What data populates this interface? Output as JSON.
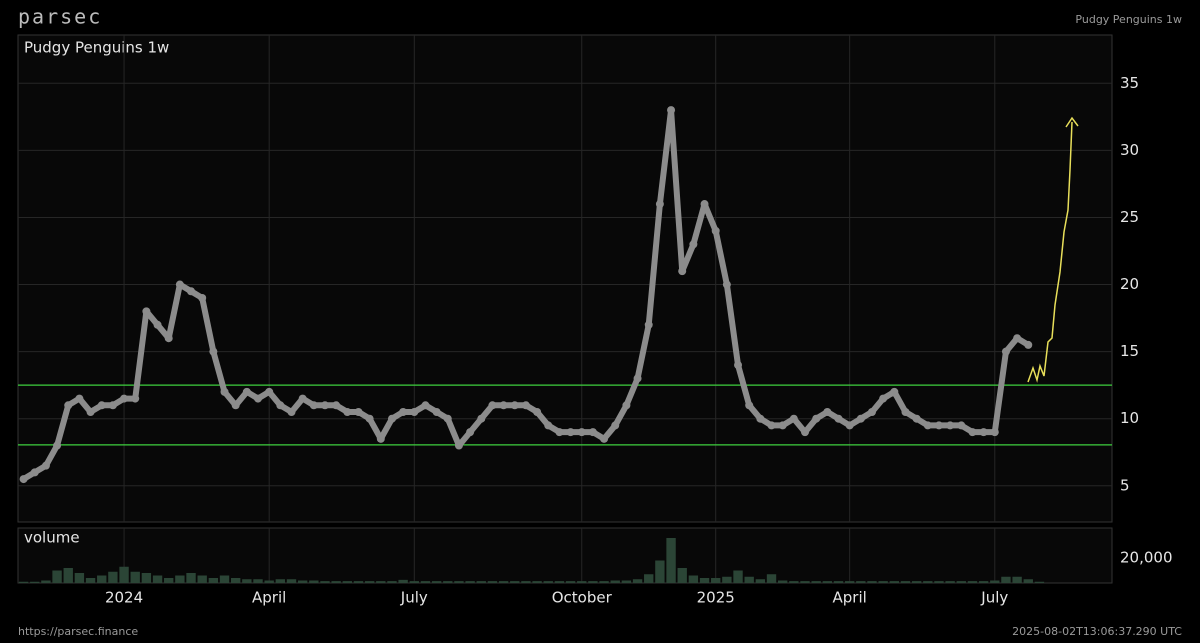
{
  "header": {
    "logo": "parsec",
    "label": "Pudgy Penguins 1w"
  },
  "footer": {
    "url": "https://parsec.finance",
    "timestamp": "2025-08-02T13:06:37.290 UTC"
  },
  "chart_data": [
    {
      "type": "scatter",
      "title": "Pudgy Penguins 1w",
      "color": "#8c8c8c",
      "grid": true,
      "categories": [
        null,
        null,
        null,
        null,
        null,
        null,
        null,
        null,
        null,
        "2024",
        null,
        null,
        null,
        null,
        null,
        null,
        null,
        null,
        null,
        null,
        null,
        null,
        "April",
        null,
        null,
        null,
        null,
        null,
        null,
        null,
        null,
        null,
        null,
        null,
        null,
        "July",
        null,
        null,
        null,
        null,
        null,
        null,
        null,
        null,
        null,
        null,
        null,
        null,
        null,
        null,
        "October",
        null,
        null,
        null,
        null,
        null,
        null,
        null,
        null,
        null,
        null,
        null,
        "2025",
        null,
        null,
        null,
        null,
        null,
        null,
        null,
        null,
        null,
        null,
        null,
        "April",
        null,
        null,
        null,
        null,
        null,
        null,
        null,
        null,
        null,
        null,
        null,
        null,
        "July",
        null,
        null,
        null,
        null,
        null,
        null,
        null,
        null,
        null,
        null
      ],
      "values": [
        5.5,
        6,
        6.5,
        8,
        11,
        11.5,
        10.5,
        11,
        11,
        11.5,
        11.5,
        18,
        17,
        16,
        20,
        19.5,
        19,
        15,
        12,
        11,
        12,
        11.5,
        12,
        11,
        10.5,
        11.5,
        11,
        11,
        11,
        10.5,
        10.5,
        10,
        8.5,
        10,
        10.5,
        10.5,
        11,
        10.5,
        10,
        8,
        9,
        10,
        11,
        11,
        11,
        11,
        10.5,
        9.5,
        9,
        9,
        9,
        9,
        8.5,
        9.5,
        11,
        13,
        17,
        26,
        33,
        21,
        23,
        26,
        24,
        20,
        14,
        11,
        10,
        9.5,
        9.5,
        10,
        9,
        10,
        10.5,
        10,
        9.5,
        10,
        10.5,
        11.5,
        12,
        10.5,
        10,
        9.5,
        9.5,
        9.5,
        9.5,
        9,
        9,
        9,
        15,
        16,
        15.5,
        null,
        null,
        null,
        null,
        null,
        null,
        null
      ],
      "ylim": [
        2.3,
        38.6
      ],
      "yticks": [
        5,
        10,
        15,
        20,
        25,
        30,
        35
      ],
      "hlines": [
        {
          "value": 12.5,
          "color": "#3ecf3e"
        },
        {
          "value": 8.05,
          "color": "#3ecf3e"
        }
      ]
    },
    {
      "type": "bar",
      "title": "volume",
      "color": "#2b4536",
      "values": [
        1000,
        1000,
        2000,
        10000,
        12000,
        8000,
        4000,
        6000,
        9000,
        13000,
        9000,
        8000,
        6000,
        4000,
        6000,
        8000,
        6000,
        4000,
        6000,
        4000,
        3000,
        3000,
        2000,
        3000,
        3000,
        2000,
        2000,
        1500,
        1500,
        1500,
        1500,
        1500,
        1500,
        1500,
        2500,
        1500,
        1500,
        1500,
        1500,
        1500,
        1500,
        1500,
        1500,
        1500,
        1500,
        1500,
        1500,
        1500,
        1500,
        1500,
        1500,
        1500,
        1500,
        2000,
        2000,
        3000,
        7000,
        18000,
        36000,
        12000,
        6000,
        4000,
        4000,
        5000,
        10000,
        5000,
        3000,
        7000,
        2000,
        1500,
        1500,
        1500,
        1500,
        1500,
        1500,
        1500,
        1500,
        1500,
        1500,
        1500,
        1500,
        1500,
        1500,
        1500,
        1500,
        1500,
        1500,
        2000,
        5000,
        5000,
        3000,
        1000,
        null,
        null,
        null,
        null,
        null,
        null
      ],
      "ylim": [
        0,
        44000
      ],
      "yticks": [
        {
          "value": 20000,
          "label": "20,000"
        }
      ]
    }
  ]
}
